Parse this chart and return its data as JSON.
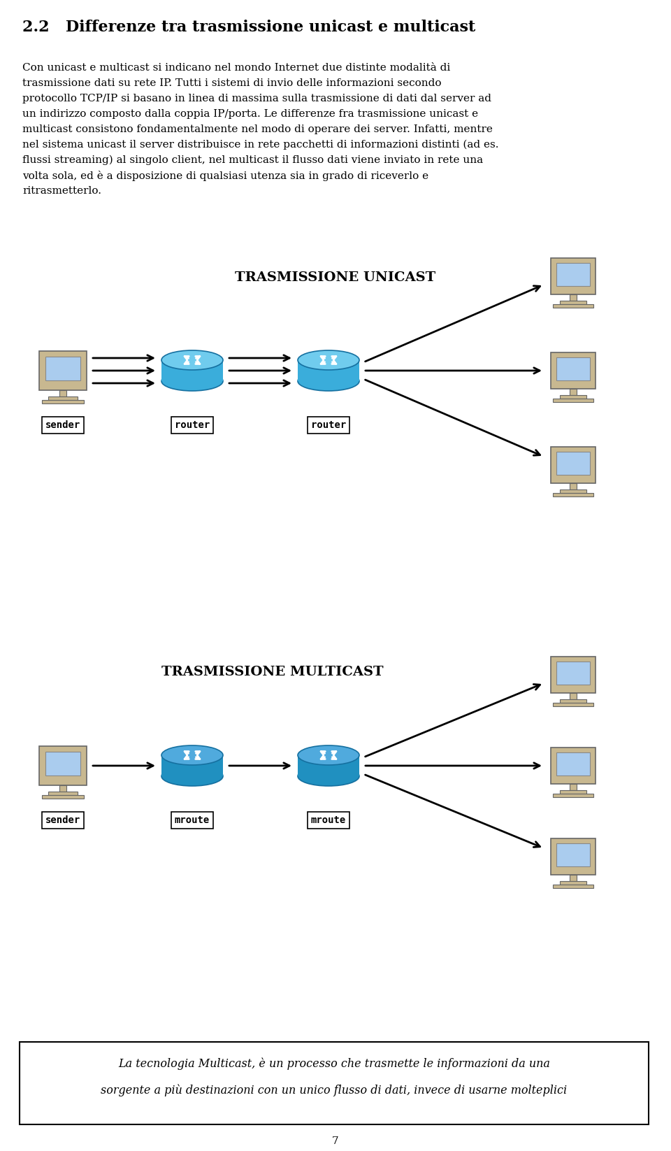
{
  "title": "2.2   Differenze tra trasmissione unicast e multicast",
  "para_lines": [
    "Con unicast e multicast si indicano nel mondo Internet due distinte modalità di",
    "trasmissione dati su rete IP. Tutti i sistemi di invio delle informazioni secondo",
    "protocollo TCP/IP si basano in linea di massima sulla trasmissione di dati dal server ad",
    "un indirizzo composto dalla coppia IP/porta. Le differenze fra trasmissione unicast e",
    "multicast consistono fondamentalmente nel modo di operare dei server. Infatti, mentre",
    "nel sistema unicast il server distribuisce in rete pacchetti di informazioni distinti (ad es.",
    "flussi streaming) al singolo client, nel multicast il flusso dati viene inviato in rete una",
    "volta sola, ed è a disposizione di qualsiasi utenza sia in grado di riceverlo e",
    "ritrasmetterlo."
  ],
  "unicast_title": "TRASMISSIONE UNICAST",
  "multicast_title": "TRASMISSIONE MULTICAST",
  "footer_line1": "La tecnologia Multicast, è un processo che trasmette le informazioni da una",
  "footer_line2": "sorgente a più destinazioni con un unico flusso di dati, invece di usarne molteplici",
  "page_number": "7",
  "router_color_unicast": "#3AADDB",
  "router_color_multicast": "#2090C0",
  "router_top_unicast": "#70CCEE",
  "router_top_multicast": "#50AADD",
  "computer_screen_color": "#AACCEE",
  "computer_body_color": "#C8B890",
  "background_color": "#FFFFFF",
  "text_color": "#000000",
  "arrow_color": "#000000"
}
